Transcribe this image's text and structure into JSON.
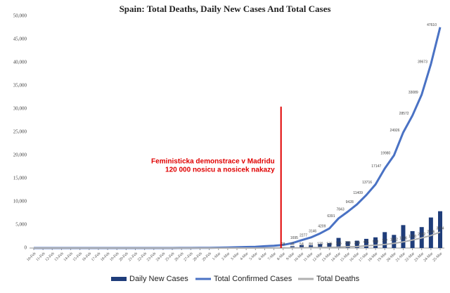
{
  "chart_data": {
    "type": "combo",
    "title": "Spain: Total Deaths, Daily New Cases And Total Cases",
    "categories": [
      "10-Feb",
      "11-Feb",
      "12-Feb",
      "13-Feb",
      "14-Feb",
      "15-Feb",
      "16-Feb",
      "17-Feb",
      "18-Feb",
      "19-Feb",
      "20-Feb",
      "21-Feb",
      "22-Feb",
      "23-Feb",
      "24-Feb",
      "25-Feb",
      "26-Feb",
      "27-Feb",
      "28-Feb",
      "29-Feb",
      "1-Mar",
      "2-Mar",
      "3-Mar",
      "4-Mar",
      "5-Mar",
      "6-Mar",
      "7-Mar",
      "8-Mar",
      "9-Mar",
      "10-Mar",
      "11-Mar",
      "12-Mar",
      "13-Mar",
      "14-Mar",
      "15-Mar",
      "16-Mar",
      "17-Mar",
      "18-Mar",
      "19-Mar",
      "20-Mar",
      "21-Mar",
      "22-Mar",
      "23-Mar",
      "24-Mar",
      "25-Mar"
    ],
    "series": [
      {
        "name": "Daily New Cases",
        "mark": "bar",
        "color": "#1f3d7a",
        "values": [
          0,
          0,
          0,
          0,
          0,
          0,
          0,
          0,
          0,
          0,
          0,
          0,
          0,
          0,
          0,
          4,
          7,
          2,
          17,
          13,
          39,
          36,
          45,
          57,
          37,
          141,
          100,
          173,
          400,
          622,
          582,
          869,
          1063,
          2182,
          1452,
          1585,
          1981,
          2307,
          3431,
          2833,
          4946,
          3646,
          4517,
          6584,
          7937
        ]
      },
      {
        "name": "Total Confirmed Cases",
        "mark": "line",
        "color": "#4a72c4",
        "values": [
          2,
          2,
          2,
          2,
          2,
          2,
          2,
          2,
          2,
          2,
          2,
          2,
          2,
          2,
          2,
          6,
          13,
          15,
          32,
          45,
          84,
          120,
          165,
          222,
          259,
          400,
          500,
          673,
          1073,
          1695,
          2277,
          3146,
          4209,
          6391,
          7843,
          9428,
          11409,
          13716,
          17147,
          19980,
          24926,
          28572,
          33089,
          39673,
          47610
        ]
      },
      {
        "name": "Total Deaths",
        "mark": "line",
        "color": "#b0b0b0",
        "values": [
          0,
          0,
          0,
          0,
          0,
          0,
          0,
          0,
          0,
          0,
          0,
          0,
          0,
          0,
          0,
          0,
          0,
          0,
          0,
          0,
          0,
          0,
          1,
          3,
          5,
          10,
          17,
          28,
          35,
          54,
          84,
          120,
          136,
          196,
          288,
          309,
          491,
          598,
          767,
          1002,
          1326,
          1720,
          2182,
          2696,
          3434
        ]
      }
    ],
    "ylim": [
      0,
      50000
    ],
    "yticks": [
      0,
      {
        "value": 5000,
        "label": "5,000"
      },
      {
        "value": 10000,
        "label": "10,000"
      },
      {
        "value": 15000,
        "label": "15,000"
      },
      {
        "value": 20000,
        "label": "20,000"
      },
      {
        "value": 25000,
        "label": "25,000"
      },
      {
        "value": 30000,
        "label": "30,000"
      },
      {
        "value": 35000,
        "label": "35,000"
      },
      {
        "value": 40000,
        "label": "40,000"
      },
      {
        "value": 45000,
        "label": "45,000"
      },
      {
        "value": 50000,
        "label": "50,000"
      }
    ],
    "grid": false,
    "legend": "bottom",
    "annotation": {
      "text": [
        "Feministicka demonstrace v Madridu",
        "120 000 nosicu a nosicek nakazy"
      ],
      "x": "8-Mar",
      "y": 30500,
      "color": "#e00000"
    }
  }
}
